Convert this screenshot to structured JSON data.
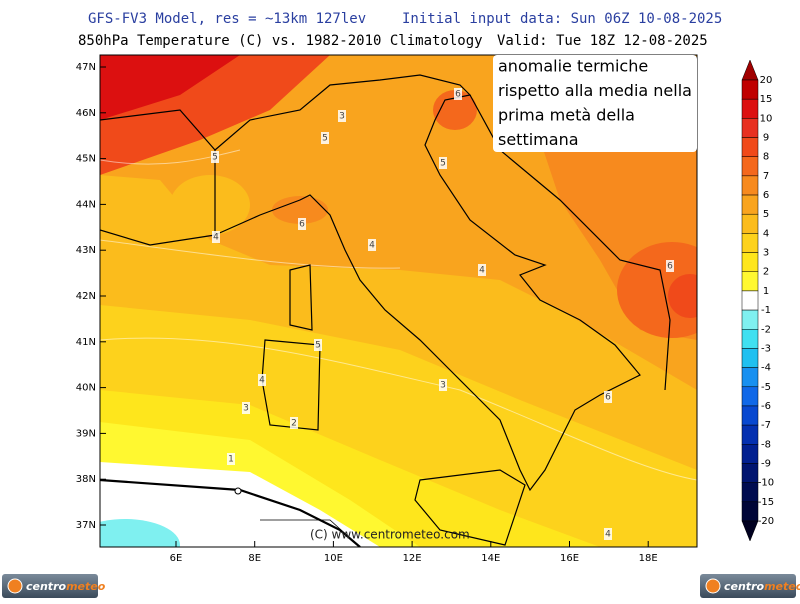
{
  "header": {
    "line1_left": "GFS-FV3 Model, res = ~13km 127lev",
    "line1_right": "Initial input data: Sun 06Z 10-08-2025",
    "line2_left": "850hPa Temperature (C) vs. 1982-2010 Climatology",
    "line2_right": "Valid: Tue 18Z 12-08-2025"
  },
  "map": {
    "lat_labels": [
      "47N",
      "46N",
      "45N",
      "44N",
      "43N",
      "42N",
      "41N",
      "40N",
      "39N",
      "38N",
      "37N"
    ],
    "lon_labels": [
      "6E",
      "8E",
      "10E",
      "12E",
      "14E",
      "16E",
      "18E"
    ],
    "contour_labels": [
      "6",
      "3",
      "5",
      "5",
      "5",
      "6",
      "4",
      "4",
      "4",
      "6",
      "5",
      "4",
      "3",
      "3",
      "2",
      "1",
      "6",
      "4"
    ],
    "credit": "(C) www.centrometeo.com"
  },
  "annotation": {
    "lines": [
      "anomalie termiche",
      "rispetto alla media nella",
      "prima metà della",
      "settimana"
    ]
  },
  "colorbar": {
    "labels": [
      20,
      15,
      10,
      9,
      8,
      7,
      6,
      5,
      4,
      3,
      2,
      1,
      -1,
      -2,
      -3,
      -4,
      -5,
      -6,
      -7,
      -8,
      -9,
      -10,
      -15,
      -20
    ],
    "colors": [
      "#a00000",
      "#c00000",
      "#dc1010",
      "#e83020",
      "#f04a1a",
      "#f4681c",
      "#f78a1e",
      "#f9a41e",
      "#fbbc1c",
      "#fdd21c",
      "#fee61c",
      "#fff830",
      "#ffffff",
      "#7ff0f0",
      "#40e0f0",
      "#20c0f0",
      "#1890f0",
      "#1068e8",
      "#0848d0",
      "#0430b0",
      "#022090",
      "#011570",
      "#000c50",
      "#000638",
      "#000020"
    ]
  },
  "logo": {
    "part1": "centro",
    "part2": "meteo"
  }
}
